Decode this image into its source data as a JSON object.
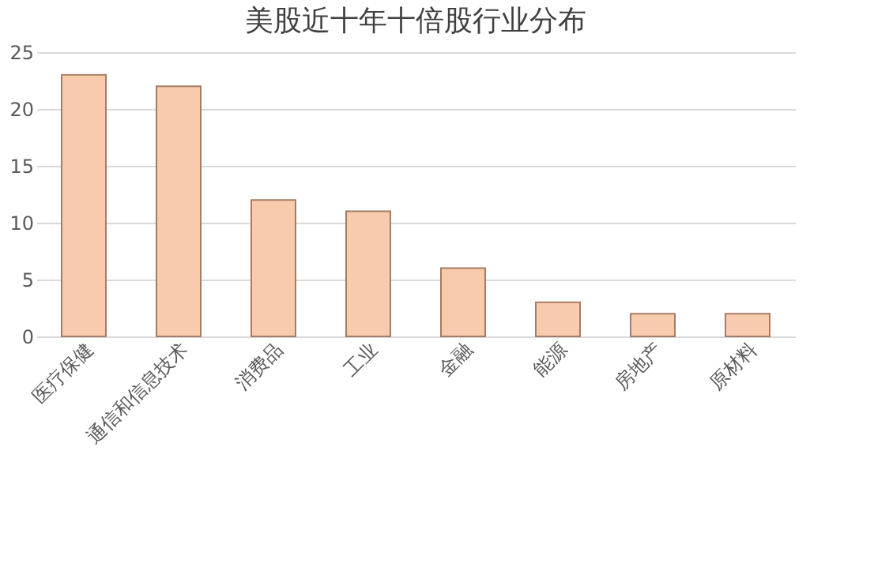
{
  "chart_data": {
    "type": "bar",
    "title": "美股近十年十倍股行业分布",
    "categories": [
      "医疗保健",
      "通信和信息技术",
      "消费品",
      "工业",
      "金融",
      "能源",
      "房地产",
      "原材料"
    ],
    "values": [
      23,
      22,
      12,
      11,
      6,
      3,
      2,
      2
    ],
    "color": "#f8cbad",
    "ylim": [
      0,
      25
    ],
    "yticks": [
      0,
      5,
      10,
      15,
      20,
      25
    ],
    "grid": "y"
  }
}
